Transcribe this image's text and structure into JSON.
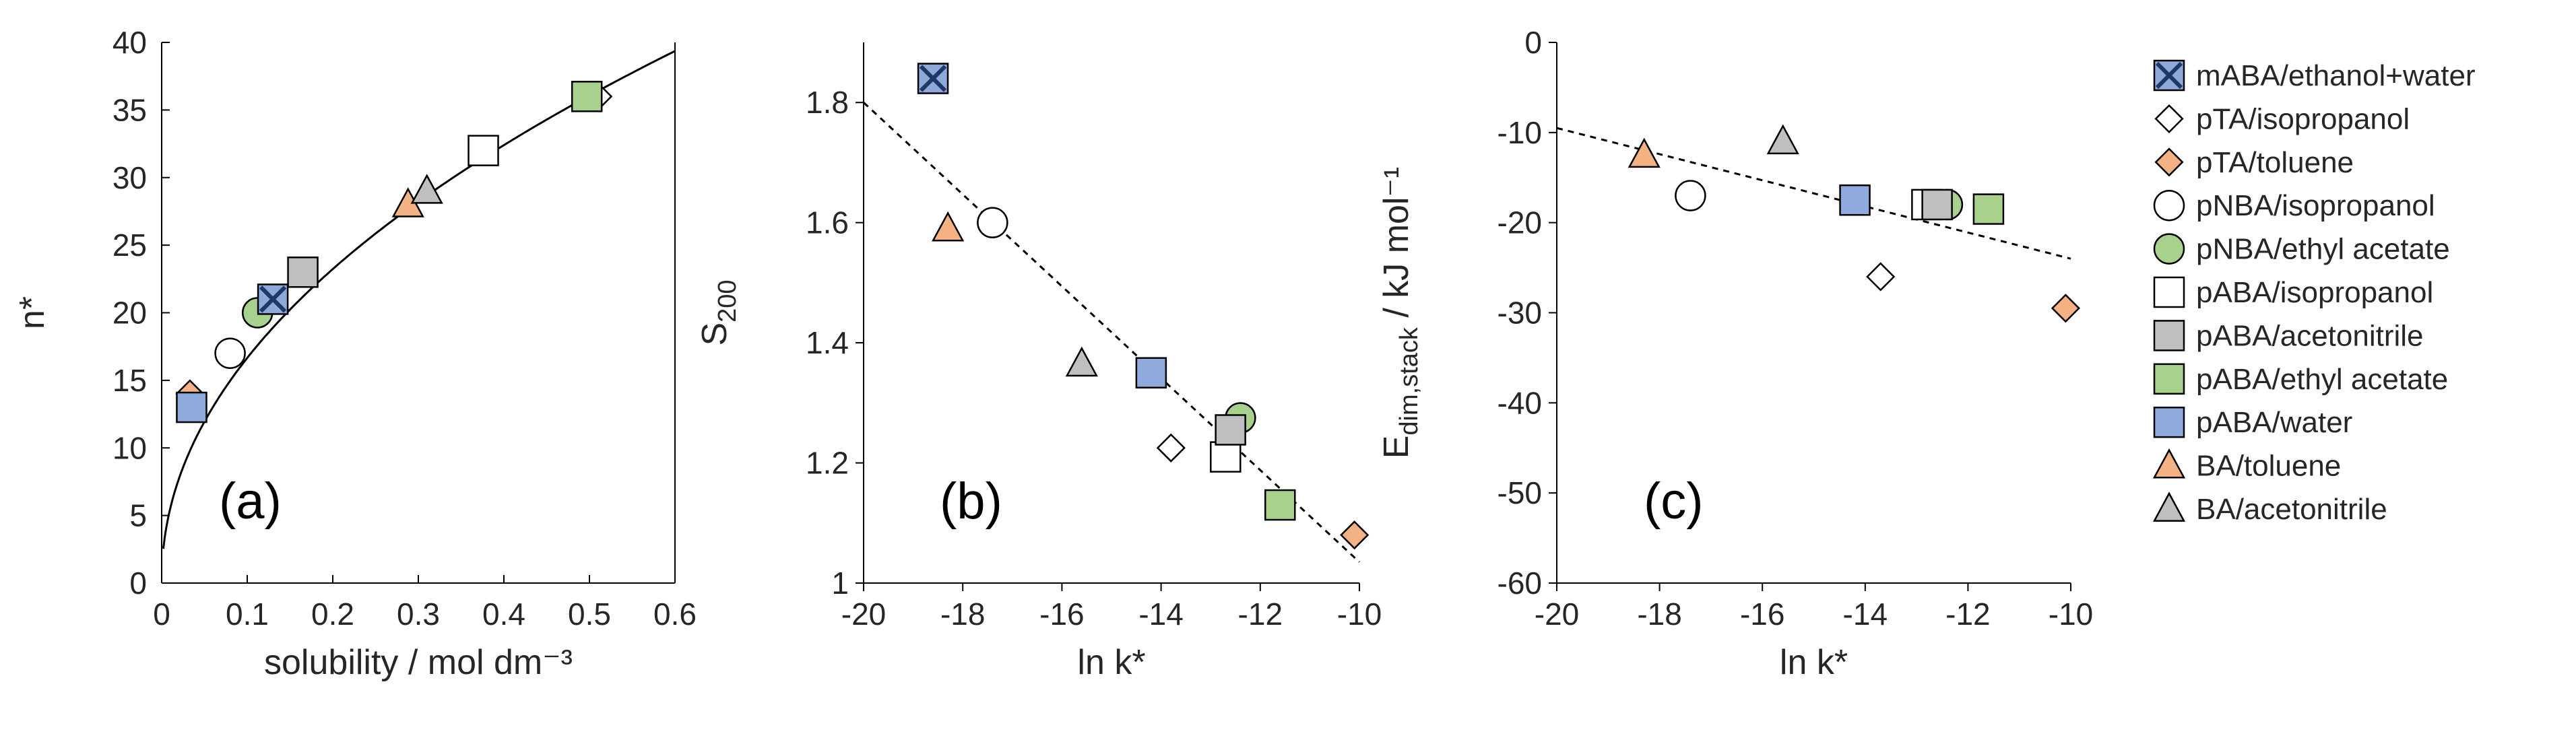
{
  "legend": [
    {
      "id": "mABA_ethwater",
      "label": "mABA/ethanol+water",
      "shape": "xsquare",
      "fill": "#8eaadb"
    },
    {
      "id": "pTA_iso",
      "label": "pTA/isopropanol",
      "shape": "diamond",
      "fill": "#ffffff"
    },
    {
      "id": "pTA_tol",
      "label": "pTA/toluene",
      "shape": "diamond",
      "fill": "#f4b183"
    },
    {
      "id": "pNBA_iso",
      "label": "pNBA/isopropanol",
      "shape": "circle",
      "fill": "#ffffff"
    },
    {
      "id": "pNBA_ea",
      "label": "pNBA/ethyl acetate",
      "shape": "circle",
      "fill": "#a9d18e"
    },
    {
      "id": "pABA_iso",
      "label": "pABA/isopropanol",
      "shape": "square",
      "fill": "#ffffff"
    },
    {
      "id": "pABA_acn",
      "label": "pABA/acetonitrile",
      "shape": "square",
      "fill": "#bfbfbf"
    },
    {
      "id": "pABA_ea",
      "label": "pABA/ethyl acetate",
      "shape": "square",
      "fill": "#a9d18e"
    },
    {
      "id": "pABA_water",
      "label": "pABA/water",
      "shape": "square",
      "fill": "#8faadc"
    },
    {
      "id": "BA_tol",
      "label": "BA/toluene",
      "shape": "triangle",
      "fill": "#f4b183"
    },
    {
      "id": "BA_acn",
      "label": "BA/acetonitrile",
      "shape": "triangle",
      "fill": "#bfbfbf"
    }
  ],
  "chart_data": [
    {
      "panel": "(a)",
      "type": "scatter",
      "xlabel": "solubility / mol dm⁻³",
      "ylabel": "n*",
      "xlim": [
        0,
        0.6
      ],
      "ylim": [
        0,
        40
      ],
      "xticks": [
        0,
        0.1,
        0.2,
        0.3,
        0.4,
        0.5,
        0.6
      ],
      "xtick_labels": [
        "0",
        "0.1",
        "0.2",
        "0.3",
        "0.4",
        "0.5",
        "0.6"
      ],
      "yticks": [
        0,
        5,
        10,
        15,
        20,
        25,
        30,
        35,
        40
      ],
      "ytick_labels": [
        "0",
        "5",
        "10",
        "15",
        "20",
        "25",
        "30",
        "35",
        "40"
      ],
      "fit": {
        "style": "solid",
        "model": "power",
        "coef": 50.3,
        "exponent": 0.48,
        "x_range": [
          0.002,
          0.6
        ]
      },
      "points": [
        {
          "series": "pTA_tol",
          "x": 0.033,
          "y": 14
        },
        {
          "series": "pABA_water",
          "x": 0.035,
          "y": 13
        },
        {
          "series": "pNBA_iso",
          "x": 0.08,
          "y": 17
        },
        {
          "series": "pNBA_ea",
          "x": 0.112,
          "y": 20
        },
        {
          "series": "mABA_ethwater",
          "x": 0.13,
          "y": 21
        },
        {
          "series": "pABA_acn",
          "x": 0.165,
          "y": 23
        },
        {
          "series": "BA_tol",
          "x": 0.288,
          "y": 28
        },
        {
          "series": "BA_acn",
          "x": 0.31,
          "y": 29
        },
        {
          "series": "pABA_iso",
          "x": 0.376,
          "y": 32
        },
        {
          "series": "pTA_iso",
          "x": 0.51,
          "y": 36
        },
        {
          "series": "pABA_ea",
          "x": 0.497,
          "y": 36
        }
      ]
    },
    {
      "panel": "(b)",
      "type": "scatter",
      "xlabel": "ln k*",
      "ylabel": "S",
      "ylabel_sub": "200",
      "xlim": [
        -20,
        -10
      ],
      "ylim": [
        1,
        1.9
      ],
      "xticks": [
        -20,
        -18,
        -16,
        -14,
        -12,
        -10
      ],
      "xtick_labels": [
        "-20",
        "-18",
        "-16",
        "-14",
        "-12",
        "-10"
      ],
      "yticks": [
        1,
        1.2,
        1.4,
        1.6,
        1.8
      ],
      "ytick_labels": [
        "1",
        "1.2",
        "1.4",
        "1.6",
        "1.8"
      ],
      "trend": {
        "style": "dashed",
        "x": [
          -20,
          -10
        ],
        "y": [
          1.8,
          1.035
        ]
      },
      "points": [
        {
          "series": "mABA_ethwater",
          "x": -18.6,
          "y": 1.84
        },
        {
          "series": "BA_tol",
          "x": -18.3,
          "y": 1.59
        },
        {
          "series": "pNBA_iso",
          "x": -17.4,
          "y": 1.6
        },
        {
          "series": "BA_acn",
          "x": -15.6,
          "y": 1.365
        },
        {
          "series": "pABA_water",
          "x": -14.2,
          "y": 1.35
        },
        {
          "series": "pTA_iso",
          "x": -13.8,
          "y": 1.225
        },
        {
          "series": "pABA_iso",
          "x": -12.7,
          "y": 1.21
        },
        {
          "series": "pNBA_ea",
          "x": -12.4,
          "y": 1.275
        },
        {
          "series": "pABA_acn",
          "x": -12.6,
          "y": 1.255
        },
        {
          "series": "pABA_ea",
          "x": -11.6,
          "y": 1.13
        },
        {
          "series": "pTA_tol",
          "x": -10.1,
          "y": 1.08
        }
      ]
    },
    {
      "panel": "(c)",
      "type": "scatter",
      "xlabel": "ln k*",
      "ylabel": "E",
      "ylabel_sub": "dim,stack",
      "ylabel_tail": " / kJ mol⁻¹",
      "xlim": [
        -20,
        -10
      ],
      "ylim": [
        -60,
        0
      ],
      "xticks": [
        -20,
        -18,
        -16,
        -14,
        -12,
        -10
      ],
      "xtick_labels": [
        "-20",
        "-18",
        "-16",
        "-14",
        "-12",
        "-10"
      ],
      "yticks": [
        -60,
        -50,
        -40,
        -30,
        -20,
        -10,
        0
      ],
      "ytick_labels": [
        "-60",
        "-50",
        "-40",
        "-30",
        "-20",
        "-10",
        "0"
      ],
      "trend": {
        "style": "dashed",
        "x": [
          -20,
          -10
        ],
        "y": [
          -9.5,
          -24
        ]
      },
      "points": [
        {
          "series": "BA_tol",
          "x": -18.3,
          "y": -12.5
        },
        {
          "series": "pNBA_iso",
          "x": -17.4,
          "y": -17
        },
        {
          "series": "BA_acn",
          "x": -15.6,
          "y": -11
        },
        {
          "series": "pABA_water",
          "x": -14.2,
          "y": -17.5
        },
        {
          "series": "pTA_iso",
          "x": -13.7,
          "y": -26
        },
        {
          "series": "pABA_iso",
          "x": -12.8,
          "y": -18
        },
        {
          "series": "pNBA_ea",
          "x": -12.4,
          "y": -18
        },
        {
          "series": "pABA_acn",
          "x": -12.6,
          "y": -18
        },
        {
          "series": "pABA_ea",
          "x": -11.6,
          "y": -18.5
        },
        {
          "series": "pTA_tol",
          "x": -10.1,
          "y": -29.5
        }
      ]
    }
  ]
}
